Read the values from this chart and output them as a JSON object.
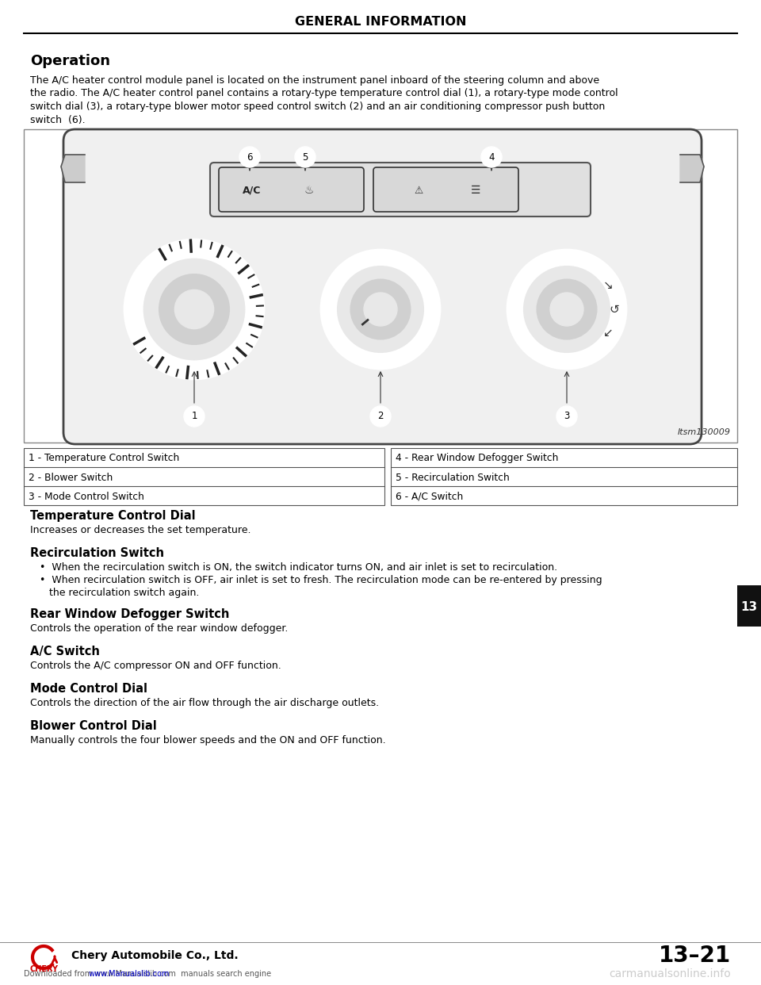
{
  "page_title": "GENERAL INFORMATION",
  "section_title": "Operation",
  "body_line1": "The A/C heater control module panel is located on the instrument panel inboard of the steering column and above",
  "body_line2": "the radio. The A/C heater control panel contains a rotary-type temperature control dial (1), a rotary-type mode control",
  "body_line3": "switch dial (3), a rotary-type blower motor speed control switch (2) and an air conditioning compressor push button",
  "body_line4": "switch  (6).",
  "image_label": "Itsm130009",
  "legend_left": [
    "1 - Temperature Control Switch",
    "2 - Blower Switch",
    "3 - Mode Control Switch"
  ],
  "legend_right": [
    "4 - Rear Window Defogger Switch",
    "5 - Recirculation Switch",
    "6 - A/C Switch"
  ],
  "sections": [
    {
      "heading": "Temperature Control Dial",
      "text": "Increases or decreases the set temperature."
    },
    {
      "heading": "Recirculation Switch",
      "bullets": [
        "When the recirculation switch is ON, the switch indicator turns ON, and air inlet is set to recirculation.",
        "When recirculation switch is OFF, air inlet is set to fresh. The recirculation mode can be re-entered by pressing\nthe recirculation switch again."
      ]
    },
    {
      "heading": "Rear Window Defogger Switch",
      "text": "Controls the operation of the rear window defogger."
    },
    {
      "heading": "A/C Switch",
      "text": "Controls the A/C compressor ON and OFF function."
    },
    {
      "heading": "Mode Control Dial",
      "text": "Controls the direction of the air flow through the air discharge outlets."
    },
    {
      "heading": "Blower Control Dial",
      "text": "Manually controls the four blower speeds and the ON and OFF function."
    }
  ],
  "page_number": "13–21",
  "company": "Chery Automobile Co., Ltd.",
  "tab_label": "13",
  "bg_color": "#ffffff",
  "text_color": "#000000"
}
